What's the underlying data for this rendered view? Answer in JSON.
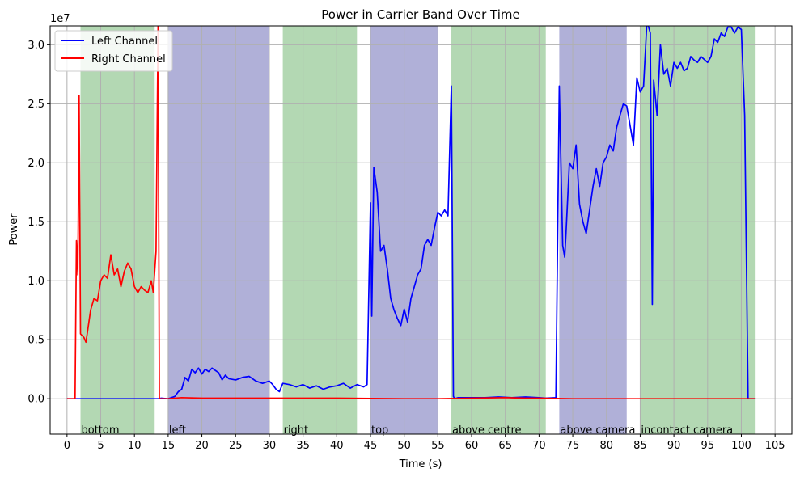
{
  "chart_data": {
    "type": "line",
    "title": "Power in Carrier Band Over Time",
    "xlabel": "Time (s)",
    "ylabel": "Power",
    "y_offset_label": "1e7",
    "xlim": [
      -2.5,
      107.5
    ],
    "ylim": [
      -3.0,
      31.6
    ],
    "y_scale": 10000000,
    "x_ticks": [
      0,
      5,
      10,
      15,
      20,
      25,
      30,
      35,
      40,
      45,
      50,
      55,
      60,
      65,
      70,
      75,
      80,
      85,
      90,
      95,
      100,
      105
    ],
    "y_ticks": [
      0.0,
      0.5,
      1.0,
      1.5,
      2.0,
      2.5,
      3.0
    ],
    "y_tick_labels": [
      "0.0",
      "0.5",
      "1.0",
      "1.5",
      "2.0",
      "2.5",
      "3.0"
    ],
    "grid": true,
    "legend_position": "top-left",
    "regions": [
      {
        "label": "bottom",
        "start": 2,
        "end": 13,
        "color": "#b3d8b3"
      },
      {
        "label": "left",
        "start": 15,
        "end": 30,
        "color": "#b0b0d8"
      },
      {
        "label": "right",
        "start": 32,
        "end": 43,
        "color": "#b3d8b3"
      },
      {
        "label": "top",
        "start": 45,
        "end": 55,
        "color": "#b0b0d8"
      },
      {
        "label": "above centre",
        "start": 57,
        "end": 71,
        "color": "#b3d8b3"
      },
      {
        "label": "above camera",
        "start": 73,
        "end": 83,
        "color": "#b0b0d8"
      },
      {
        "label": "incontact camera",
        "start": 85,
        "end": 102,
        "color": "#b3d8b3"
      }
    ],
    "series": [
      {
        "name": "Left Channel",
        "color": "#0000ff",
        "points": [
          [
            0,
            0
          ],
          [
            13.5,
            0
          ],
          [
            14,
            0.05
          ],
          [
            15,
            0
          ],
          [
            16,
            0.2
          ],
          [
            16.5,
            0.6
          ],
          [
            17,
            0.8
          ],
          [
            17.5,
            1.8
          ],
          [
            18,
            1.5
          ],
          [
            18.5,
            2.5
          ],
          [
            19,
            2.2
          ],
          [
            19.5,
            2.6
          ],
          [
            20,
            2.1
          ],
          [
            20.5,
            2.5
          ],
          [
            21,
            2.3
          ],
          [
            21.5,
            2.6
          ],
          [
            22,
            2.4
          ],
          [
            22.5,
            2.2
          ],
          [
            23,
            1.6
          ],
          [
            23.5,
            2.0
          ],
          [
            24,
            1.7
          ],
          [
            25,
            1.6
          ],
          [
            26,
            1.8
          ],
          [
            27,
            1.9
          ],
          [
            28,
            1.5
          ],
          [
            29,
            1.3
          ],
          [
            30,
            1.5
          ],
          [
            30.5,
            1.2
          ],
          [
            31,
            0.8
          ],
          [
            31.5,
            0.6
          ],
          [
            32,
            1.3
          ],
          [
            33,
            1.2
          ],
          [
            34,
            1.0
          ],
          [
            35,
            1.2
          ],
          [
            36,
            0.9
          ],
          [
            37,
            1.1
          ],
          [
            38,
            0.8
          ],
          [
            39,
            1.0
          ],
          [
            40,
            1.1
          ],
          [
            41,
            1.3
          ],
          [
            42,
            0.9
          ],
          [
            43,
            1.2
          ],
          [
            44,
            1.0
          ],
          [
            44.5,
            1.2
          ],
          [
            45,
            16.6
          ],
          [
            45.2,
            7.0
          ],
          [
            45.5,
            19.6
          ],
          [
            46,
            17.5
          ],
          [
            46.5,
            12.5
          ],
          [
            47,
            13.0
          ],
          [
            47.5,
            11.0
          ],
          [
            48,
            8.5
          ],
          [
            48.5,
            7.5
          ],
          [
            49,
            6.8
          ],
          [
            49.5,
            6.2
          ],
          [
            50,
            7.6
          ],
          [
            50.5,
            6.5
          ],
          [
            51,
            8.5
          ],
          [
            51.5,
            9.5
          ],
          [
            52,
            10.5
          ],
          [
            52.5,
            11.0
          ],
          [
            53,
            13.0
          ],
          [
            53.5,
            13.5
          ],
          [
            54,
            13.0
          ],
          [
            54.5,
            14.5
          ],
          [
            55,
            15.8
          ],
          [
            55.5,
            15.5
          ],
          [
            56,
            16.0
          ],
          [
            56.5,
            15.5
          ],
          [
            57,
            26.5
          ],
          [
            57.3,
            0.2
          ],
          [
            57.5,
            0
          ],
          [
            58,
            0.1
          ],
          [
            60,
            0.1
          ],
          [
            62,
            0.1
          ],
          [
            64,
            0.15
          ],
          [
            66,
            0.1
          ],
          [
            68,
            0.15
          ],
          [
            70,
            0.1
          ],
          [
            71,
            0.05
          ],
          [
            72.5,
            0.1
          ],
          [
            73,
            26.5
          ],
          [
            73.5,
            13.0
          ],
          [
            73.8,
            12.0
          ],
          [
            74,
            14.0
          ],
          [
            74.5,
            20.0
          ],
          [
            75,
            19.5
          ],
          [
            75.5,
            21.5
          ],
          [
            76,
            16.5
          ],
          [
            76.5,
            15.0
          ],
          [
            77,
            14.0
          ],
          [
            77.5,
            16.0
          ],
          [
            78,
            18.0
          ],
          [
            78.5,
            19.5
          ],
          [
            79,
            18.0
          ],
          [
            79.5,
            20.0
          ],
          [
            80,
            20.5
          ],
          [
            80.5,
            21.5
          ],
          [
            81,
            21.0
          ],
          [
            81.5,
            23.0
          ],
          [
            82,
            24.0
          ],
          [
            82.5,
            25.0
          ],
          [
            83,
            24.8
          ],
          [
            84,
            21.5
          ],
          [
            84.5,
            27.2
          ],
          [
            85,
            26.0
          ],
          [
            85.5,
            26.5
          ],
          [
            86,
            32.0
          ],
          [
            86.5,
            31.0
          ],
          [
            86.8,
            8.0
          ],
          [
            87,
            27.0
          ],
          [
            87.5,
            24.0
          ],
          [
            88,
            30.0
          ],
          [
            88.5,
            27.5
          ],
          [
            89,
            28.0
          ],
          [
            89.5,
            26.5
          ],
          [
            90,
            28.5
          ],
          [
            90.5,
            28.0
          ],
          [
            91,
            28.5
          ],
          [
            91.5,
            27.8
          ],
          [
            92,
            28.0
          ],
          [
            92.5,
            29.0
          ],
          [
            93,
            28.7
          ],
          [
            93.5,
            28.5
          ],
          [
            94,
            29.0
          ],
          [
            95,
            28.5
          ],
          [
            95.5,
            29.0
          ],
          [
            96,
            30.5
          ],
          [
            96.5,
            30.2
          ],
          [
            97,
            31.0
          ],
          [
            97.5,
            30.7
          ],
          [
            98,
            31.5
          ],
          [
            98.5,
            31.5
          ],
          [
            99,
            31.0
          ],
          [
            99.5,
            31.5
          ],
          [
            100,
            31.3
          ],
          [
            100.5,
            24.0
          ],
          [
            101,
            0
          ],
          [
            102,
            0
          ]
        ]
      },
      {
        "name": "Right Channel",
        "color": "#ff0000",
        "points": [
          [
            0,
            0
          ],
          [
            1.2,
            0
          ],
          [
            1.4,
            13.4
          ],
          [
            1.6,
            10.5
          ],
          [
            1.8,
            25.7
          ],
          [
            2,
            5.5
          ],
          [
            2.5,
            5.2
          ],
          [
            2.8,
            4.8
          ],
          [
            3,
            5.5
          ],
          [
            3.5,
            7.5
          ],
          [
            4,
            8.5
          ],
          [
            4.5,
            8.3
          ],
          [
            5,
            10.0
          ],
          [
            5.5,
            10.5
          ],
          [
            6,
            10.2
          ],
          [
            6.5,
            12.2
          ],
          [
            7,
            10.5
          ],
          [
            7.5,
            11.0
          ],
          [
            8,
            9.5
          ],
          [
            8.5,
            10.8
          ],
          [
            9,
            11.5
          ],
          [
            9.5,
            11.0
          ],
          [
            10,
            9.5
          ],
          [
            10.5,
            9.0
          ],
          [
            11,
            9.5
          ],
          [
            11.5,
            9.2
          ],
          [
            12,
            9.0
          ],
          [
            12.5,
            10.0
          ],
          [
            12.8,
            9.0
          ],
          [
            13.2,
            12.5
          ],
          [
            13.5,
            31.6
          ],
          [
            13.7,
            0
          ],
          [
            15,
            0
          ],
          [
            17,
            0.1
          ],
          [
            20,
            0.05
          ],
          [
            25,
            0.05
          ],
          [
            30,
            0.05
          ],
          [
            40,
            0.05
          ],
          [
            50,
            0
          ],
          [
            55,
            0
          ],
          [
            60,
            0.05
          ],
          [
            65,
            0.1
          ],
          [
            68,
            0.05
          ],
          [
            70,
            0.05
          ],
          [
            75,
            0
          ],
          [
            80,
            0
          ],
          [
            85,
            0
          ],
          [
            90,
            0
          ],
          [
            95,
            0
          ],
          [
            100,
            0
          ],
          [
            102,
            0
          ]
        ]
      }
    ]
  }
}
